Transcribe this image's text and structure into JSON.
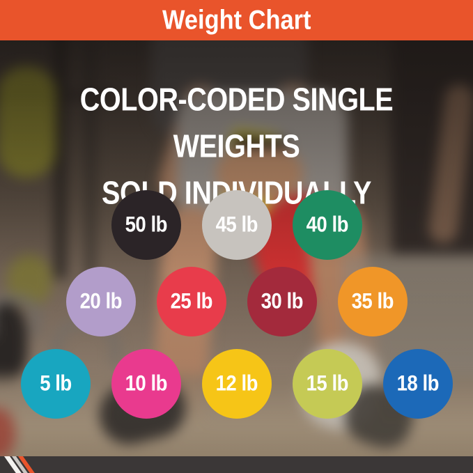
{
  "banner": {
    "title": "Weight Chart",
    "bg": "#e9542b"
  },
  "headline": {
    "line1": "COLOR-CODED SINGLE WEIGHTS",
    "line2": "SOLD INDIVIDUALLY"
  },
  "weights": {
    "unit": "lb",
    "rows": [
      {
        "items": [
          {
            "label": "50 lb",
            "color": "#2b2427"
          },
          {
            "label": "45 lb",
            "color": "#c7c3be"
          },
          {
            "label": "40 lb",
            "color": "#1e8d62"
          }
        ]
      },
      {
        "items": [
          {
            "label": "20 lb",
            "color": "#b29dca"
          },
          {
            "label": "25 lb",
            "color": "#e83c4b"
          },
          {
            "label": "30 lb",
            "color": "#a32a3c"
          },
          {
            "label": "35 lb",
            "color": "#f09628"
          }
        ]
      },
      {
        "items": [
          {
            "label": "5 lb",
            "color": "#18a6c0"
          },
          {
            "label": "10 lb",
            "color": "#e93a8e"
          },
          {
            "label": "12 lb",
            "color": "#f6c517"
          },
          {
            "label": "15 lb",
            "color": "#c5ca55"
          },
          {
            "label": "18 lb",
            "color": "#1c69b8"
          }
        ]
      }
    ]
  },
  "footer": {
    "bg": "#3b3737",
    "stripes": [
      "#f4f2ef",
      "#c9c6c2",
      "#e9542b"
    ]
  }
}
